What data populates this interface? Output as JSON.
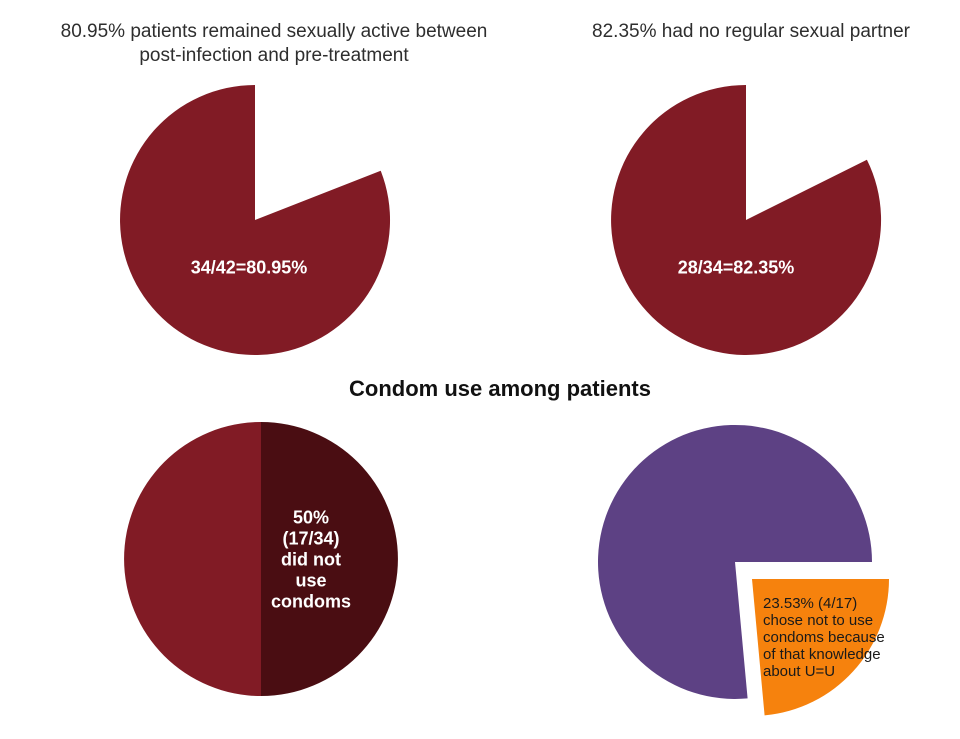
{
  "page_background": "#ffffff",
  "colors": {
    "maroon": "#811B25",
    "dark_maroon": "#4A0D12",
    "purple": "#5D4184",
    "orange": "#F6820D",
    "title_text": "#2e2e2e",
    "heading_text": "#111111",
    "light_label_text": "#ffffff",
    "dark_label_text": "#1a1a1a"
  },
  "headings": {
    "top_left": "80.95% patients remained sexually active between\npost-infection and pre-treatment",
    "top_right": "82.35% had no regular sexual partner",
    "middle": "Condom use among patients"
  },
  "chart_data": [
    {
      "type": "pie",
      "title": "80.95% patients remained sexually active between post-infection and pre-treatment",
      "start_angle_deg": 0,
      "direction": "clockwise",
      "legend_position": "none",
      "slices": [
        {
          "name": "not-sexually-active",
          "fraction": 0.1905,
          "color": null
        },
        {
          "name": "remained-sexually-active",
          "fraction": 0.8095,
          "color": "#811B25",
          "label": "34/42=80.95%"
        }
      ]
    },
    {
      "type": "pie",
      "title": "82.35% had no regular sexual partner",
      "start_angle_deg": 0,
      "direction": "clockwise",
      "legend_position": "none",
      "slices": [
        {
          "name": "had-regular-partner",
          "fraction": 0.1765,
          "color": null
        },
        {
          "name": "no-regular-partner",
          "fraction": 0.8235,
          "color": "#811B25",
          "label": "28/34=82.35%"
        }
      ]
    },
    {
      "type": "pie",
      "title": "Condom use among patients",
      "start_angle_deg": 0,
      "direction": "clockwise",
      "legend_position": "none",
      "slices": [
        {
          "name": "did-not-use-condoms",
          "fraction": 0.5,
          "color": "#4A0D12",
          "label": "50%\n(17/34)\ndid not\nuse\ncondoms"
        },
        {
          "name": "used-condoms",
          "fraction": 0.5,
          "color": "#811B25"
        }
      ]
    },
    {
      "type": "pie",
      "title": "Condom non-use because of U=U knowledge",
      "start_angle_deg": 90,
      "direction": "clockwise",
      "legend_position": "none",
      "slices": [
        {
          "name": "chose-not-to-use-because-of-u-equals-u",
          "fraction": 0.2353,
          "color": "#F6820D",
          "explode": [
            17,
            17
          ],
          "label": "23.53% (4/17)\nchose not to use\ncondoms because\nof that knowledge\nabout U=U"
        },
        {
          "name": "other-reasons",
          "fraction": 0.7647,
          "color": "#5D4184"
        }
      ]
    }
  ]
}
